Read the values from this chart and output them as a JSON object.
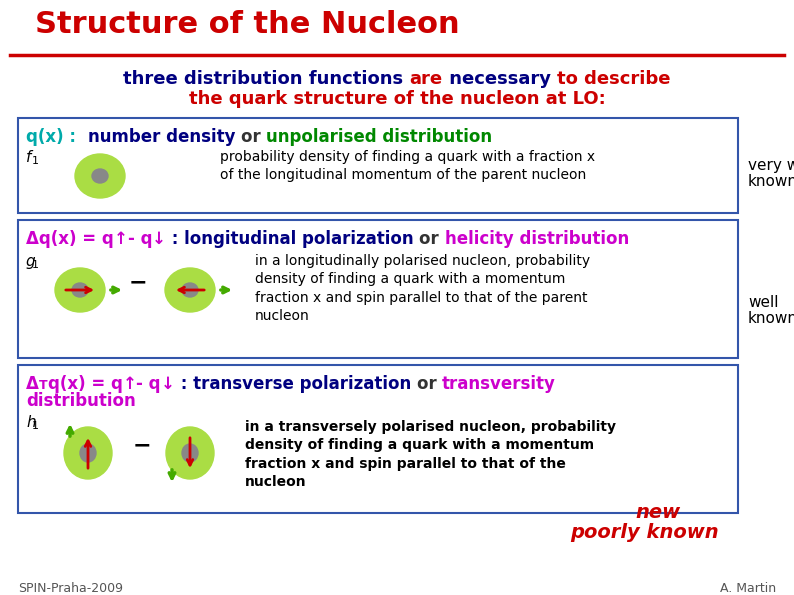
{
  "title": "Structure of the Nucleon",
  "bg_color": "#ffffff",
  "title_color": "#cc0000",
  "box_border_color": "#4466aa",
  "sub1_parts": [
    [
      "three distribution functions ",
      "#000080"
    ],
    [
      "are",
      "#cc0000"
    ],
    [
      " necessary ",
      "#000080"
    ],
    [
      "to describe",
      "#cc0000"
    ]
  ],
  "sub2_parts": [
    [
      "the quark structure of the nucleon at LO:",
      "#cc0000"
    ]
  ],
  "box1_title_parts": [
    [
      "q(x) :  ",
      "#00aaaa"
    ],
    [
      "number density ",
      "#000080"
    ],
    [
      "or ",
      "#333333"
    ],
    [
      "unpolarised distribution",
      "#008800"
    ]
  ],
  "box1_desc": "probability density of finding a quark with a fraction x\nof the longitudinal momentum of the parent nucleon",
  "box1_known": [
    "very well",
    "known"
  ],
  "box2_title_parts": [
    [
      "Δq(x) = q",
      "#cc00cc"
    ],
    [
      "↑",
      "#cc00cc"
    ],
    [
      "- q",
      "#cc00cc"
    ],
    [
      "↓",
      "#cc00cc"
    ],
    [
      " : longitudinal polarization ",
      "#000080"
    ],
    [
      "or ",
      "#333333"
    ],
    [
      "helicity distribution",
      "#cc00cc"
    ]
  ],
  "box2_desc": "in a longitudinally polarised nucleon, probability\ndensity of finding a quark with a momentum\nfraction x and spin parallel to that of the parent\nnucleon",
  "box2_known": [
    "well",
    "known"
  ],
  "box3_title_parts": [
    [
      "Δ",
      "#cc00cc"
    ],
    [
      "T",
      "#cc00cc"
    ],
    [
      "q(x) = q",
      "#cc00cc"
    ],
    [
      "↑",
      "#cc00cc"
    ],
    [
      "- q",
      "#cc00cc"
    ],
    [
      "↓",
      "#cc00cc"
    ],
    [
      " : transverse polarization ",
      "#000080"
    ],
    [
      "or ",
      "#333333"
    ],
    [
      "transversity",
      "#cc00cc"
    ]
  ],
  "box3_line2": "distribution",
  "box3_desc": "in a transversely polarised nucleon, probability\ndensity of finding a quark with a momentum\nfraction x and spin parallel to that of the\nnucleon",
  "box3_known1": "new",
  "box3_known2": "poorly known",
  "footer_left": "SPIN-Praha-2009",
  "footer_right": "A. Martin",
  "green_circle": "#aadd44",
  "grey_inner": "#888888",
  "red_arrow": "#cc0000",
  "green_arrow": "#44aa00"
}
